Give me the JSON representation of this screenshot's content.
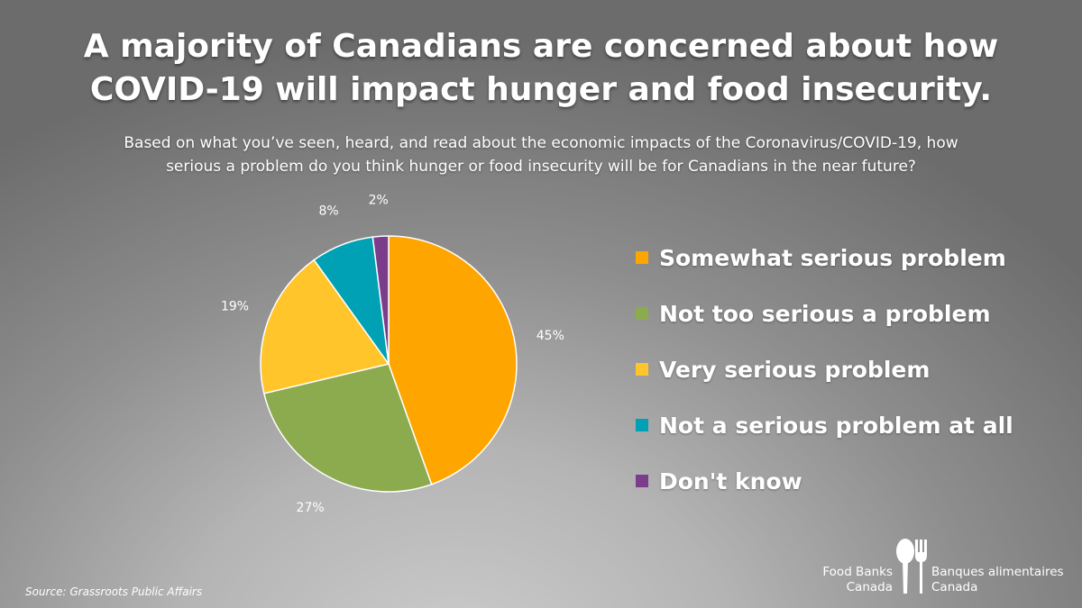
{
  "title": {
    "line1": "A majority of Canadians are concerned about how",
    "line2": "COVID-19 will impact hunger and food insecurity."
  },
  "subtitle": {
    "line1": "Based on what you’ve seen, heard, and read about the economic impacts of the Coronavirus/COVID-19, how",
    "line2": "serious a problem do you think hunger or food insecurity will be for Canadians in the near future?"
  },
  "chart_data": {
    "type": "pie",
    "categories": [
      "Somewhat serious problem",
      "Not too serious a problem",
      "Very serious problem",
      "Not a serious problem at all",
      "Don't know"
    ],
    "values": [
      45,
      27,
      19,
      8,
      2
    ],
    "labels": [
      "45%",
      "27%",
      "19%",
      "8%",
      "2%"
    ],
    "colors": [
      "#FFA500",
      "#8CAA4E",
      "#FFC52B",
      "#00A1B4",
      "#7C3C8C"
    ],
    "legend_position": "right"
  },
  "source": "Source: Grassroots Public Affairs",
  "logo": {
    "en_line1": "Food Banks",
    "en_line2": "Canada",
    "fr_line1": "Banques alimentaires",
    "fr_line2": "Canada",
    "icon": "spoon-fork-icon"
  }
}
